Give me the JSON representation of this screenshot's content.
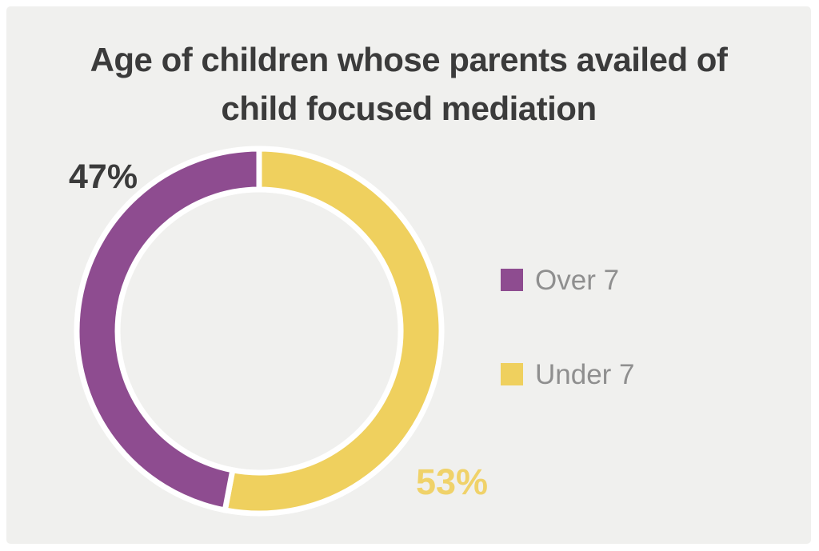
{
  "page": {
    "background": "#ffffff",
    "panel_background": "#f0f0ee"
  },
  "chart_data": {
    "type": "pie",
    "donut": true,
    "title": "Age of children whose parents availed of child focused mediation",
    "title_lines": [
      "Age of children whose parents availed of",
      "child focused mediation"
    ],
    "title_color": "#3b3b3b",
    "start_angle": "top",
    "direction": "clockwise",
    "legend_position": "right",
    "segment_outline_color": "#ffffff",
    "segments": [
      {
        "label": "Under 7",
        "value": 53,
        "data_label": "53%",
        "color": "#efd05e",
        "label_color": "#f0d269"
      },
      {
        "label": "Over 7",
        "value": 47,
        "data_label": "47%",
        "color": "#8e4c90",
        "label_color": "#3b3b3b"
      }
    ],
    "legend": [
      {
        "label": "Over 7",
        "color": "#8e4c90"
      },
      {
        "label": "Under 7",
        "color": "#efd05e"
      }
    ],
    "legend_text_color": "#8f8f8f"
  }
}
